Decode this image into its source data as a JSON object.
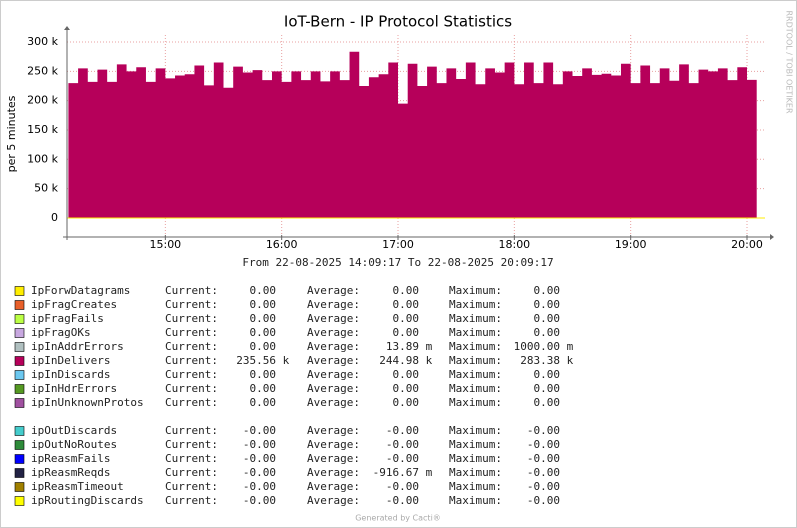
{
  "chart_data": {
    "type": "area",
    "title": "IoT-Bern - IP Protocol Statistics",
    "subtitle": "From 22-08-2025 14:09:17 To 22-08-2025 20:09:17",
    "ylabel": "per 5 minutes",
    "watermark": "RRDTOOL / TOBI OETIKER",
    "footer": "Generated by Cacti®",
    "x": [
      850,
      855,
      860,
      865,
      870,
      875,
      880,
      885,
      890,
      895,
      900,
      905,
      910,
      915,
      920,
      925,
      930,
      935,
      940,
      945,
      950,
      955,
      960,
      965,
      970,
      975,
      980,
      985,
      990,
      995,
      1000,
      1005,
      1010,
      1015,
      1020,
      1025,
      1030,
      1035,
      1040,
      1045,
      1050,
      1055,
      1060,
      1065,
      1070,
      1075,
      1080,
      1085,
      1090,
      1095,
      1100,
      1105,
      1110,
      1115,
      1120,
      1125,
      1130,
      1135,
      1140,
      1145,
      1150,
      1155,
      1160,
      1165,
      1170,
      1175,
      1180,
      1185,
      1190,
      1195,
      1200
    ],
    "series": [
      {
        "color": "#b6005a",
        "values": [
          230000,
          255000,
          232000,
          253000,
          232000,
          262000,
          250000,
          257000,
          232000,
          255000,
          238000,
          243000,
          245000,
          260000,
          226000,
          265000,
          222000,
          258000,
          248000,
          252000,
          235000,
          250000,
          232000,
          250000,
          235000,
          250000,
          233000,
          250000,
          235000,
          283380,
          225000,
          240000,
          245000,
          265000,
          195000,
          263000,
          225000,
          258000,
          230000,
          255000,
          237000,
          265000,
          228000,
          255000,
          248000,
          265000,
          228000,
          265000,
          230000,
          265000,
          228000,
          250000,
          242000,
          255000,
          244000,
          246000,
          243000,
          263000,
          230000,
          260000,
          230000,
          255000,
          234000,
          262000,
          230000,
          253000,
          250000,
          255000,
          235000,
          257000,
          235560
        ]
      }
    ],
    "xlim": [
      849.28,
      1209.28
    ],
    "xticks": [
      {
        "value": 900,
        "label": "15:00"
      },
      {
        "value": 960,
        "label": "16:00"
      },
      {
        "value": 1020,
        "label": "17:00"
      },
      {
        "value": 1080,
        "label": "18:00"
      },
      {
        "value": 1140,
        "label": "19:00"
      },
      {
        "value": 1200,
        "label": "20:00"
      }
    ],
    "ylim": [
      -32500,
      312000
    ],
    "yticks": [
      0,
      {
        "value": 50000,
        "label": "50 k"
      },
      {
        "value": 100000,
        "label": "100 k"
      },
      {
        "value": 150000,
        "label": "150 k"
      },
      {
        "value": 200000,
        "label": "200 k"
      },
      {
        "value": 250000,
        "label": "250 k"
      },
      {
        "value": 300000,
        "label": "300 k"
      }
    ],
    "grid": true,
    "legend_headers": {
      "current": "Current:",
      "average": "Average:",
      "maximum": "Maximum:"
    },
    "legend": [
      [
        {
          "name": "IpForwDatagrams",
          "color": "#ffee00",
          "current": "0.00",
          "average": "0.00",
          "maximum": "0.00"
        },
        {
          "name": "ipFragCreates",
          "color": "#e8602a",
          "current": "0.00",
          "average": "0.00",
          "maximum": "0.00"
        },
        {
          "name": "ipFragFails",
          "color": "#bbff44",
          "current": "0.00",
          "average": "0.00",
          "maximum": "0.00"
        },
        {
          "name": "ipFragOKs",
          "color": "#c8a8e0",
          "current": "0.00",
          "average": "0.00",
          "maximum": "0.00"
        },
        {
          "name": "ipInAddrErrors",
          "color": "#b0c0c0",
          "current": "0.00",
          "average": "13.89 m",
          "maximum": "1000.00 m"
        },
        {
          "name": "ipInDelivers",
          "color": "#b6005a",
          "current": "235.56 k",
          "average": "244.98 k",
          "maximum": "283.38 k"
        },
        {
          "name": "ipInDiscards",
          "color": "#6cc8f0",
          "current": "0.00",
          "average": "0.00",
          "maximum": "0.00"
        },
        {
          "name": "ipInHdrErrors",
          "color": "#559922",
          "current": "0.00",
          "average": "0.00",
          "maximum": "0.00"
        },
        {
          "name": "ipInUnknownProtos",
          "color": "#a050a0",
          "current": "0.00",
          "average": "0.00",
          "maximum": "0.00"
        }
      ],
      [
        {
          "name": "ipOutDiscards",
          "color": "#44cccc",
          "current": "-0.00",
          "average": "-0.00",
          "maximum": "-0.00"
        },
        {
          "name": "ipOutNoRoutes",
          "color": "#2e8b3a",
          "current": "-0.00",
          "average": "-0.00",
          "maximum": "-0.00"
        },
        {
          "name": "ipReasmFails",
          "color": "#0000ff",
          "current": "-0.00",
          "average": "-0.00",
          "maximum": "-0.00"
        },
        {
          "name": "ipReasmReqds",
          "color": "#222244",
          "current": "-0.00",
          "average": "-916.67 m",
          "maximum": "-0.00"
        },
        {
          "name": "ipReasmTimeout",
          "color": "#a08000",
          "current": "-0.00",
          "average": "-0.00",
          "maximum": "-0.00"
        },
        {
          "name": "ipRoutingDiscards",
          "color": "#ffff00",
          "current": "-0.00",
          "average": "-0.00",
          "maximum": "-0.00"
        }
      ]
    ]
  }
}
